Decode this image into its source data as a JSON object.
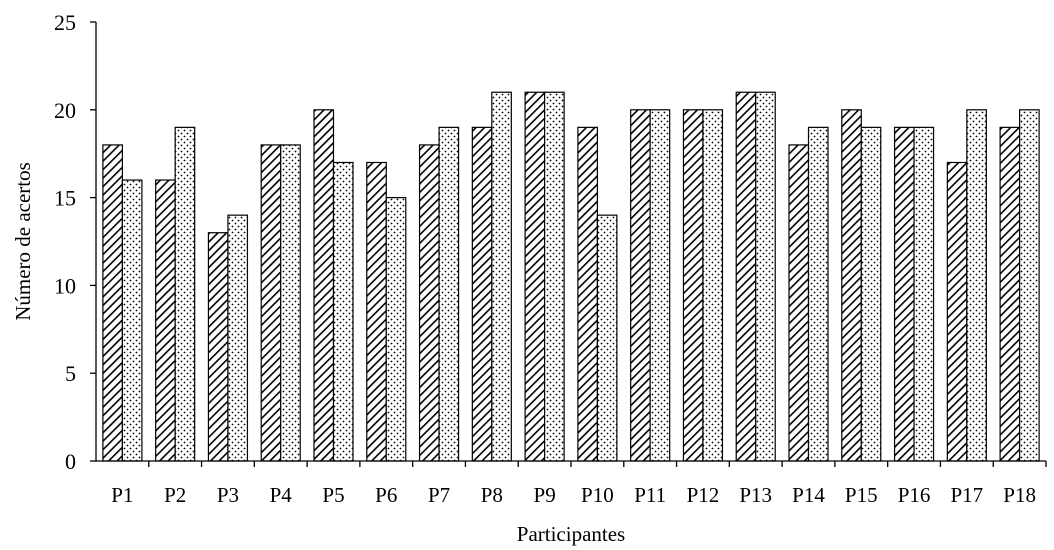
{
  "chart_data": {
    "type": "bar",
    "categories": [
      "P1",
      "P2",
      "P3",
      "P4",
      "P5",
      "P6",
      "P7",
      "P8",
      "P9",
      "P10",
      "P11",
      "P12",
      "P13",
      "P14",
      "P15",
      "P16",
      "P17",
      "P18"
    ],
    "series": [
      {
        "pattern": "diagonal-hatch",
        "values": [
          18,
          16,
          13,
          18,
          20,
          17,
          18,
          19,
          21,
          19,
          20,
          20,
          21,
          18,
          20,
          19,
          17,
          19
        ]
      },
      {
        "pattern": "dotted",
        "values": [
          16,
          19,
          14,
          18,
          17,
          15,
          19,
          21,
          21,
          14,
          20,
          20,
          21,
          19,
          19,
          19,
          20,
          20
        ]
      }
    ],
    "xlabel": "Participantes",
    "ylabel": "Número de acertos",
    "ylim": [
      0,
      25
    ],
    "yticks": [
      0,
      5,
      10,
      15,
      20,
      25
    ],
    "grid": false,
    "legend": "none",
    "colors": {
      "axis": "#000000",
      "bar_fill": "#ffffff",
      "pattern": "#000000"
    }
  }
}
